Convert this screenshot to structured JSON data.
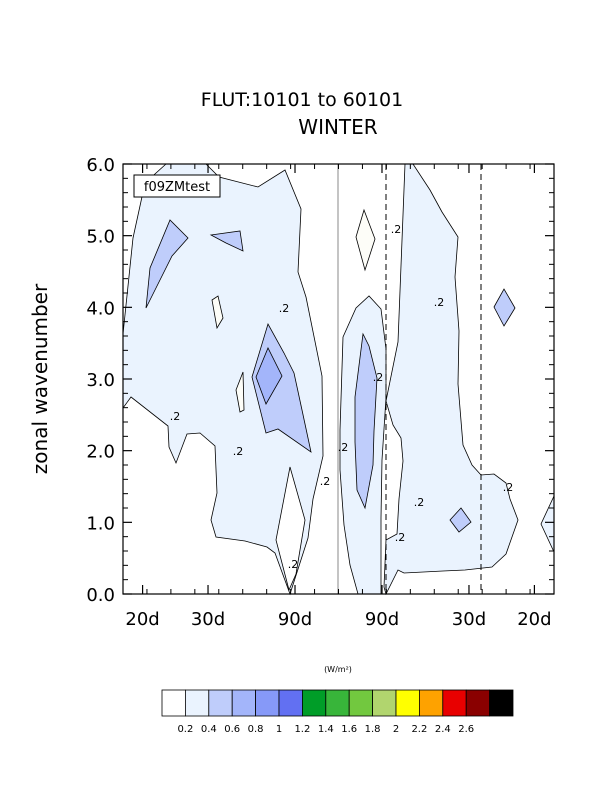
{
  "chart_data": {
    "type": "contour",
    "title": "FLUT:10101 to 60101",
    "subtitle": "WINTER",
    "ylabel": "zonal wavenumber",
    "xlabel": "",
    "ylim": [
      0.0,
      6.0
    ],
    "y_ticks": [
      "0.0",
      "1.0",
      "2.0",
      "3.0",
      "4.0",
      "5.0",
      "6.0"
    ],
    "x_tick_labels": [
      "20d",
      "30d",
      "90d",
      "90d",
      "30d",
      "20d"
    ],
    "x_tick_positions": [
      -0.05,
      -0.0333,
      -0.0111,
      0.0111,
      0.0333,
      0.05
    ],
    "xlim": [
      -0.055,
      0.055
    ],
    "legend_box_label": "f09ZMtest",
    "contour_label": ".2",
    "colorbar": {
      "units_label": "(W/m²)",
      "levels": [
        "0.2",
        "0.4",
        "0.6",
        "0.8",
        "1",
        "1.2",
        "1.4",
        "1.6",
        "1.8",
        "2",
        "2.2",
        "2.4",
        "2.6"
      ],
      "colors": [
        "#ffffff",
        "#eaf3fe",
        "#bfcdfb",
        "#a3b5fa",
        "#8699f8",
        "#6270f2",
        "#009d28",
        "#38b53a",
        "#72c83f",
        "#b1d56e",
        "#ffff00",
        "#fea200",
        "#e80000",
        "#8a0000",
        "#000000"
      ]
    }
  }
}
